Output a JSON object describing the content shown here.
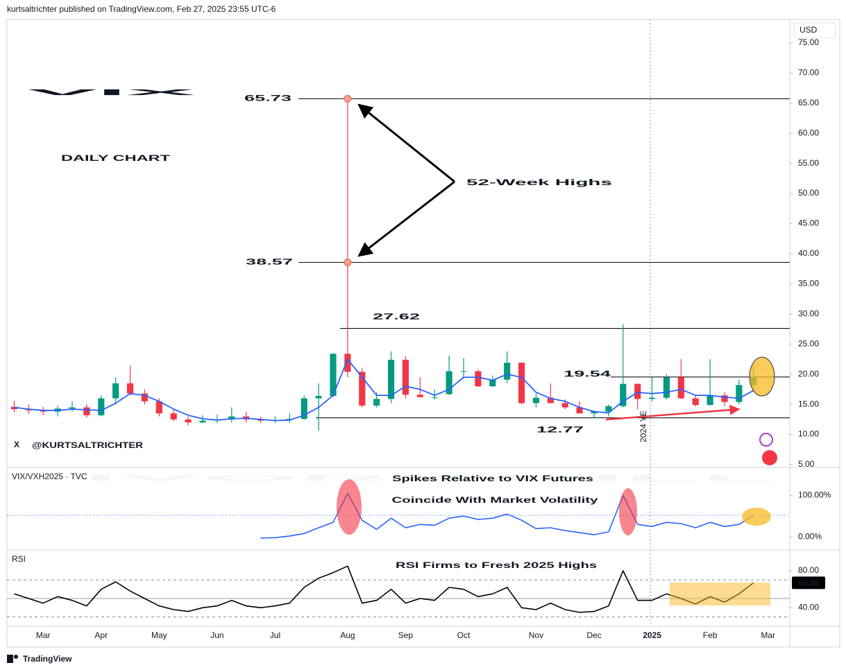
{
  "header": {
    "text": "kurtsaltrichter published on TradingView.com, Feb 27, 2025 23:55 UTC-6",
    "brand": "TradingView"
  },
  "chart_data": [
    {
      "type": "candlestick",
      "title": "VIX",
      "subtitle": "DAILY CHART",
      "annotation": "52-Week Highs",
      "handle": "@KURTSALTRICHTER",
      "currency": "USD",
      "year_end_label": "2024 YE",
      "watermark": "IVORY HILL",
      "categories": [
        null,
        null,
        "Mar",
        null,
        null,
        null,
        "Apr",
        null,
        null,
        null,
        "May",
        null,
        null,
        null,
        "Jun",
        null,
        null,
        null,
        "Jul",
        null,
        null,
        null,
        null,
        "Aug",
        null,
        null,
        null,
        "Sep",
        null,
        null,
        null,
        "Oct",
        null,
        null,
        null,
        null,
        "Nov",
        null,
        null,
        null,
        "Dec",
        null,
        null,
        null,
        "2025",
        null,
        null,
        null,
        "Feb",
        null,
        null,
        null,
        "Mar",
        null
      ],
      "open": [
        14.6,
        14.2,
        14.0,
        13.8,
        14.3,
        14.5,
        13.2,
        16.0,
        18.5,
        16.8,
        15.5,
        13.5,
        12.5,
        12.0,
        12.3,
        12.5,
        13.0,
        12.5,
        12.3,
        12.4,
        12.6,
        16.0,
        16.4,
        23.4,
        20.4,
        14.8,
        15.9,
        22.4,
        16.6,
        16.2,
        16.7,
        20.5,
        20.5,
        18.0,
        19.1,
        21.9,
        15.2,
        16.1,
        15.2,
        14.5,
        13.5,
        13.8,
        14.7,
        18.4,
        15.9,
        16.1,
        19.5,
        16.0,
        14.9,
        16.5,
        15.4,
        18.2,
        null,
        null
      ],
      "high": [
        15.6,
        15.0,
        14.6,
        14.8,
        15.5,
        15.0,
        16.5,
        19.5,
        21.4,
        17.5,
        16.0,
        14.0,
        13.0,
        13.2,
        13.3,
        14.5,
        13.8,
        13.0,
        13.0,
        13.5,
        16.5,
        18.5,
        23.5,
        65.73,
        21.0,
        17.0,
        23.8,
        23.0,
        19.5,
        17.5,
        23.1,
        22.7,
        20.8,
        19.8,
        23.8,
        22.0,
        16.8,
        18.5,
        15.8,
        15.5,
        14.0,
        15.0,
        28.3,
        18.5,
        19.5,
        20.0,
        22.5,
        16.5,
        22.5,
        17.0,
        19.1,
        21.5,
        null,
        null
      ],
      "low": [
        13.7,
        13.4,
        13.2,
        13.0,
        13.8,
        12.8,
        13.0,
        15.0,
        16.5,
        15.0,
        13.0,
        12.2,
        11.5,
        11.9,
        11.9,
        12.0,
        12.0,
        11.9,
        11.9,
        12.0,
        12.4,
        10.6,
        16.2,
        19.5,
        14.5,
        14.5,
        15.2,
        16.0,
        16.2,
        15.8,
        16.5,
        19.3,
        17.9,
        17.9,
        18.5,
        15.0,
        14.5,
        15.2,
        14.2,
        13.5,
        12.77,
        13.0,
        14.5,
        14.2,
        15.5,
        15.8,
        15.9,
        14.6,
        14.8,
        14.7,
        15.0,
        17.2,
        null,
        null
      ],
      "close": [
        14.2,
        14.0,
        13.8,
        14.3,
        14.5,
        13.2,
        16.0,
        18.5,
        16.8,
        15.5,
        13.5,
        12.5,
        12.0,
        12.3,
        12.5,
        13.0,
        12.5,
        12.3,
        12.4,
        12.6,
        16.0,
        16.4,
        23.4,
        20.4,
        14.8,
        15.9,
        22.4,
        16.6,
        16.2,
        16.2,
        20.5,
        20.5,
        18.0,
        19.1,
        21.9,
        15.2,
        16.1,
        15.2,
        14.5,
        13.5,
        13.8,
        14.7,
        18.4,
        15.9,
        16.1,
        19.5,
        16.0,
        14.9,
        16.5,
        15.4,
        18.2,
        19.54,
        null,
        null
      ],
      "up_color": "#089981",
      "down_color": "#f23645",
      "ma": {
        "color": "#2962ff",
        "values": [
          14.5,
          14.2,
          14.0,
          14.0,
          14.2,
          14.1,
          14.0,
          15.2,
          16.8,
          16.5,
          15.5,
          14.2,
          13.2,
          12.6,
          12.4,
          12.6,
          12.7,
          12.5,
          12.3,
          12.4,
          13.2,
          14.5,
          16.5,
          22.5,
          19.5,
          16.5,
          16.5,
          18.0,
          17.5,
          16.5,
          17.5,
          19.5,
          19.5,
          19.0,
          20.0,
          19.5,
          17.0,
          16.0,
          15.5,
          14.5,
          13.8,
          13.6,
          15.5,
          17.0,
          16.8,
          17.0,
          17.5,
          16.5,
          16.5,
          16.2,
          16.0,
          17.3,
          null,
          null
        ]
      },
      "levels": [
        65.73,
        38.57,
        27.62,
        19.54,
        12.77
      ],
      "ylim": [
        4.65,
        78.9
      ],
      "yticks": [
        {
          "value": 5,
          "label": "5.00"
        },
        {
          "value": 10,
          "label": "10.00"
        },
        {
          "value": 15,
          "label": "15.00"
        },
        {
          "value": 20,
          "label": "20.00"
        },
        {
          "value": 25,
          "label": "25.00"
        },
        {
          "value": 30,
          "label": "30.00"
        },
        {
          "value": 35,
          "label": "35.00"
        },
        {
          "value": 40,
          "label": "40.00"
        },
        {
          "value": 45,
          "label": "45.00"
        },
        {
          "value": 50,
          "label": "50.00"
        },
        {
          "value": 55,
          "label": "55.00"
        },
        {
          "value": 60,
          "label": "60.00"
        },
        {
          "value": 65,
          "label": "65.00"
        },
        {
          "value": 70,
          "label": "70.00"
        },
        {
          "value": 75,
          "label": "75.00"
        }
      ]
    },
    {
      "type": "line",
      "title": "VIX/VXH2025 · TVC",
      "annotation": [
        "Spikes Relative to VIX Futures",
        "Coincide With Market Volatility"
      ],
      "color": "#2962ff",
      "values": [
        null,
        null,
        null,
        null,
        null,
        null,
        null,
        null,
        null,
        null,
        null,
        null,
        null,
        null,
        null,
        null,
        null,
        -3,
        -2,
        2,
        8,
        22,
        35,
        105,
        40,
        18,
        45,
        22,
        30,
        28,
        45,
        50,
        42,
        45,
        55,
        40,
        20,
        22,
        15,
        10,
        5,
        12,
        100,
        30,
        25,
        35,
        32,
        22,
        35,
        25,
        30,
        52,
        null,
        null
      ],
      "ylim": [
        -30,
        166
      ],
      "yticks": [
        {
          "value": 0,
          "label": "0.00%"
        },
        {
          "value": 100,
          "label": "100.00%"
        }
      ]
    },
    {
      "type": "line",
      "title": "RSI",
      "annotation": [
        "RSI Firms to Fresh 2025 Highs"
      ],
      "color": "#000000",
      "values": [
        55,
        50,
        45,
        52,
        48,
        42,
        60,
        68,
        58,
        50,
        42,
        38,
        36,
        40,
        42,
        48,
        42,
        40,
        42,
        45,
        62,
        72,
        78,
        85,
        45,
        48,
        60,
        45,
        50,
        48,
        62,
        60,
        52,
        55,
        62,
        40,
        38,
        45,
        38,
        35,
        36,
        42,
        80,
        48,
        48,
        55,
        50,
        44,
        52,
        46,
        55,
        66.98,
        null,
        null
      ],
      "levels": [
        70,
        50,
        30
      ],
      "ylim": [
        20,
        101
      ],
      "yticks": [
        {
          "value": 80,
          "label": "80.00"
        },
        {
          "value": 40,
          "label": "40.00"
        }
      ]
    }
  ]
}
